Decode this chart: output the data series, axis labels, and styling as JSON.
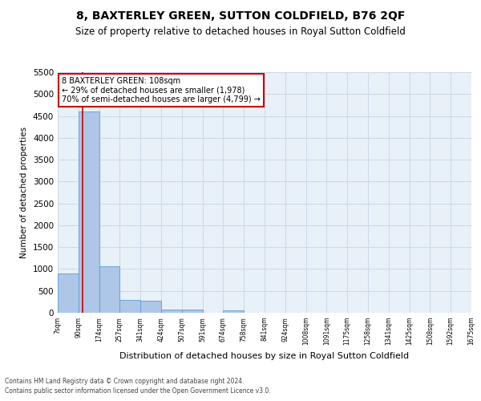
{
  "title": "8, BAXTERLEY GREEN, SUTTON COLDFIELD, B76 2QF",
  "subtitle": "Size of property relative to detached houses in Royal Sutton Coldfield",
  "xlabel": "Distribution of detached houses by size in Royal Sutton Coldfield",
  "ylabel": "Number of detached properties",
  "footer_line1": "Contains HM Land Registry data © Crown copyright and database right 2024.",
  "footer_line2": "Contains public sector information licensed under the Open Government Licence v3.0.",
  "bin_labels": [
    "7sqm",
    "90sqm",
    "174sqm",
    "257sqm",
    "341sqm",
    "424sqm",
    "507sqm",
    "591sqm",
    "674sqm",
    "758sqm",
    "841sqm",
    "924sqm",
    "1008sqm",
    "1091sqm",
    "1175sqm",
    "1258sqm",
    "1341sqm",
    "1425sqm",
    "1508sqm",
    "1592sqm",
    "1675sqm"
  ],
  "bar_heights": [
    900,
    4600,
    1060,
    300,
    280,
    80,
    80,
    0,
    50,
    0,
    0,
    0,
    0,
    0,
    0,
    0,
    0,
    0,
    0,
    0
  ],
  "bar_color": "#aec6e8",
  "bar_edge_color": "#5a9fd4",
  "property_line_color": "#cc0000",
  "ylim": [
    0,
    5500
  ],
  "yticks": [
    0,
    500,
    1000,
    1500,
    2000,
    2500,
    3000,
    3500,
    4000,
    4500,
    5000,
    5500
  ],
  "annotation_text": "8 BAXTERLEY GREEN: 108sqm\n← 29% of detached houses are smaller (1,978)\n70% of semi-detached houses are larger (4,799) →",
  "annotation_box_color": "#ffffff",
  "annotation_box_edge": "#cc0000",
  "grid_color": "#ccd9e8",
  "bg_color": "#e8f0f8",
  "title_fontsize": 10,
  "subtitle_fontsize": 8.5,
  "property_sqm": 108,
  "bin_starts": [
    7,
    90,
    174,
    257,
    341,
    424,
    507,
    591,
    674,
    758,
    841,
    924,
    1008,
    1091,
    1175,
    1258,
    1341,
    1425,
    1508,
    1592,
    1675
  ]
}
